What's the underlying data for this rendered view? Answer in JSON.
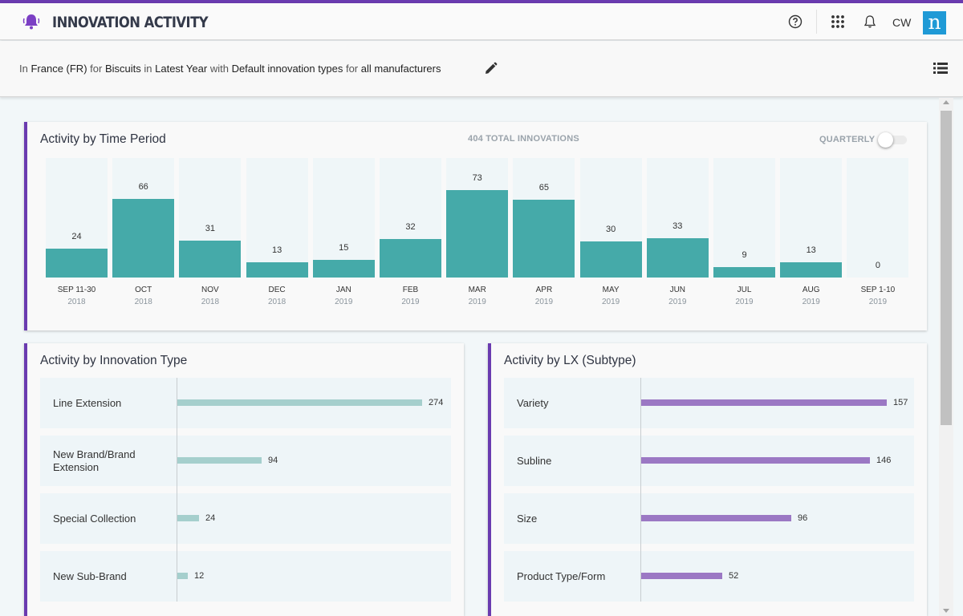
{
  "app": {
    "title": "INNOVATION ACTIVITY",
    "user_initials": "CW",
    "brand_letter": "n",
    "accent_color": "#6a3bb0"
  },
  "header_icons": [
    "bell-app-icon",
    "help-icon",
    "apps-grid-icon",
    "notifications-bell-icon",
    "edit-pencil-icon",
    "list-view-icon"
  ],
  "filters": {
    "t1": "In",
    "market": "France (FR)",
    "t2": "for",
    "category": "Biscuits",
    "t3": "in",
    "period": "Latest Year",
    "t4": "with",
    "innovation_types": "Default innovation types",
    "t5": "for",
    "manufacturers": "all manufacturers"
  },
  "time_card": {
    "title": "Activity by Time Period",
    "total_label": "404 TOTAL INNOVATIONS",
    "toggle_label": "QUARTERLY",
    "quarterly_on": false
  },
  "type_card": {
    "title": "Activity by Innovation Type"
  },
  "lx_card": {
    "title": "Activity by LX (Subtype)"
  },
  "chart_data": [
    {
      "type": "bar",
      "title": "Activity by Time Period",
      "bar_color": "#45aaa9",
      "categories": [
        {
          "label": "SEP 11-30",
          "year": "2018"
        },
        {
          "label": "OCT",
          "year": "2018"
        },
        {
          "label": "NOV",
          "year": "2018"
        },
        {
          "label": "DEC",
          "year": "2018"
        },
        {
          "label": "JAN",
          "year": "2019"
        },
        {
          "label": "FEB",
          "year": "2019"
        },
        {
          "label": "MAR",
          "year": "2019"
        },
        {
          "label": "APR",
          "year": "2019"
        },
        {
          "label": "MAY",
          "year": "2019"
        },
        {
          "label": "JUN",
          "year": "2019"
        },
        {
          "label": "JUL",
          "year": "2019"
        },
        {
          "label": "AUG",
          "year": "2019"
        },
        {
          "label": "SEP 1-10",
          "year": "2019"
        }
      ],
      "values": [
        24,
        66,
        31,
        13,
        15,
        32,
        73,
        65,
        30,
        33,
        9,
        13,
        0
      ],
      "ylim": [
        0,
        100
      ]
    },
    {
      "type": "bar",
      "orientation": "horizontal",
      "title": "Activity by Innovation Type",
      "bar_color": "#a5cfcd",
      "categories": [
        "Line Extension",
        "New Brand/Brand\nExtension",
        "Special Collection",
        "New Sub-Brand"
      ],
      "values": [
        274,
        94,
        24,
        12
      ],
      "xlim": [
        0,
        274
      ]
    },
    {
      "type": "bar",
      "orientation": "horizontal",
      "title": "Activity by LX (Subtype)",
      "bar_color": "#9b78c4",
      "categories": [
        "Variety",
        "Subline",
        "Size",
        "Product Type/Form"
      ],
      "values": [
        157,
        146,
        96,
        52
      ],
      "xlim": [
        0,
        157
      ]
    }
  ]
}
